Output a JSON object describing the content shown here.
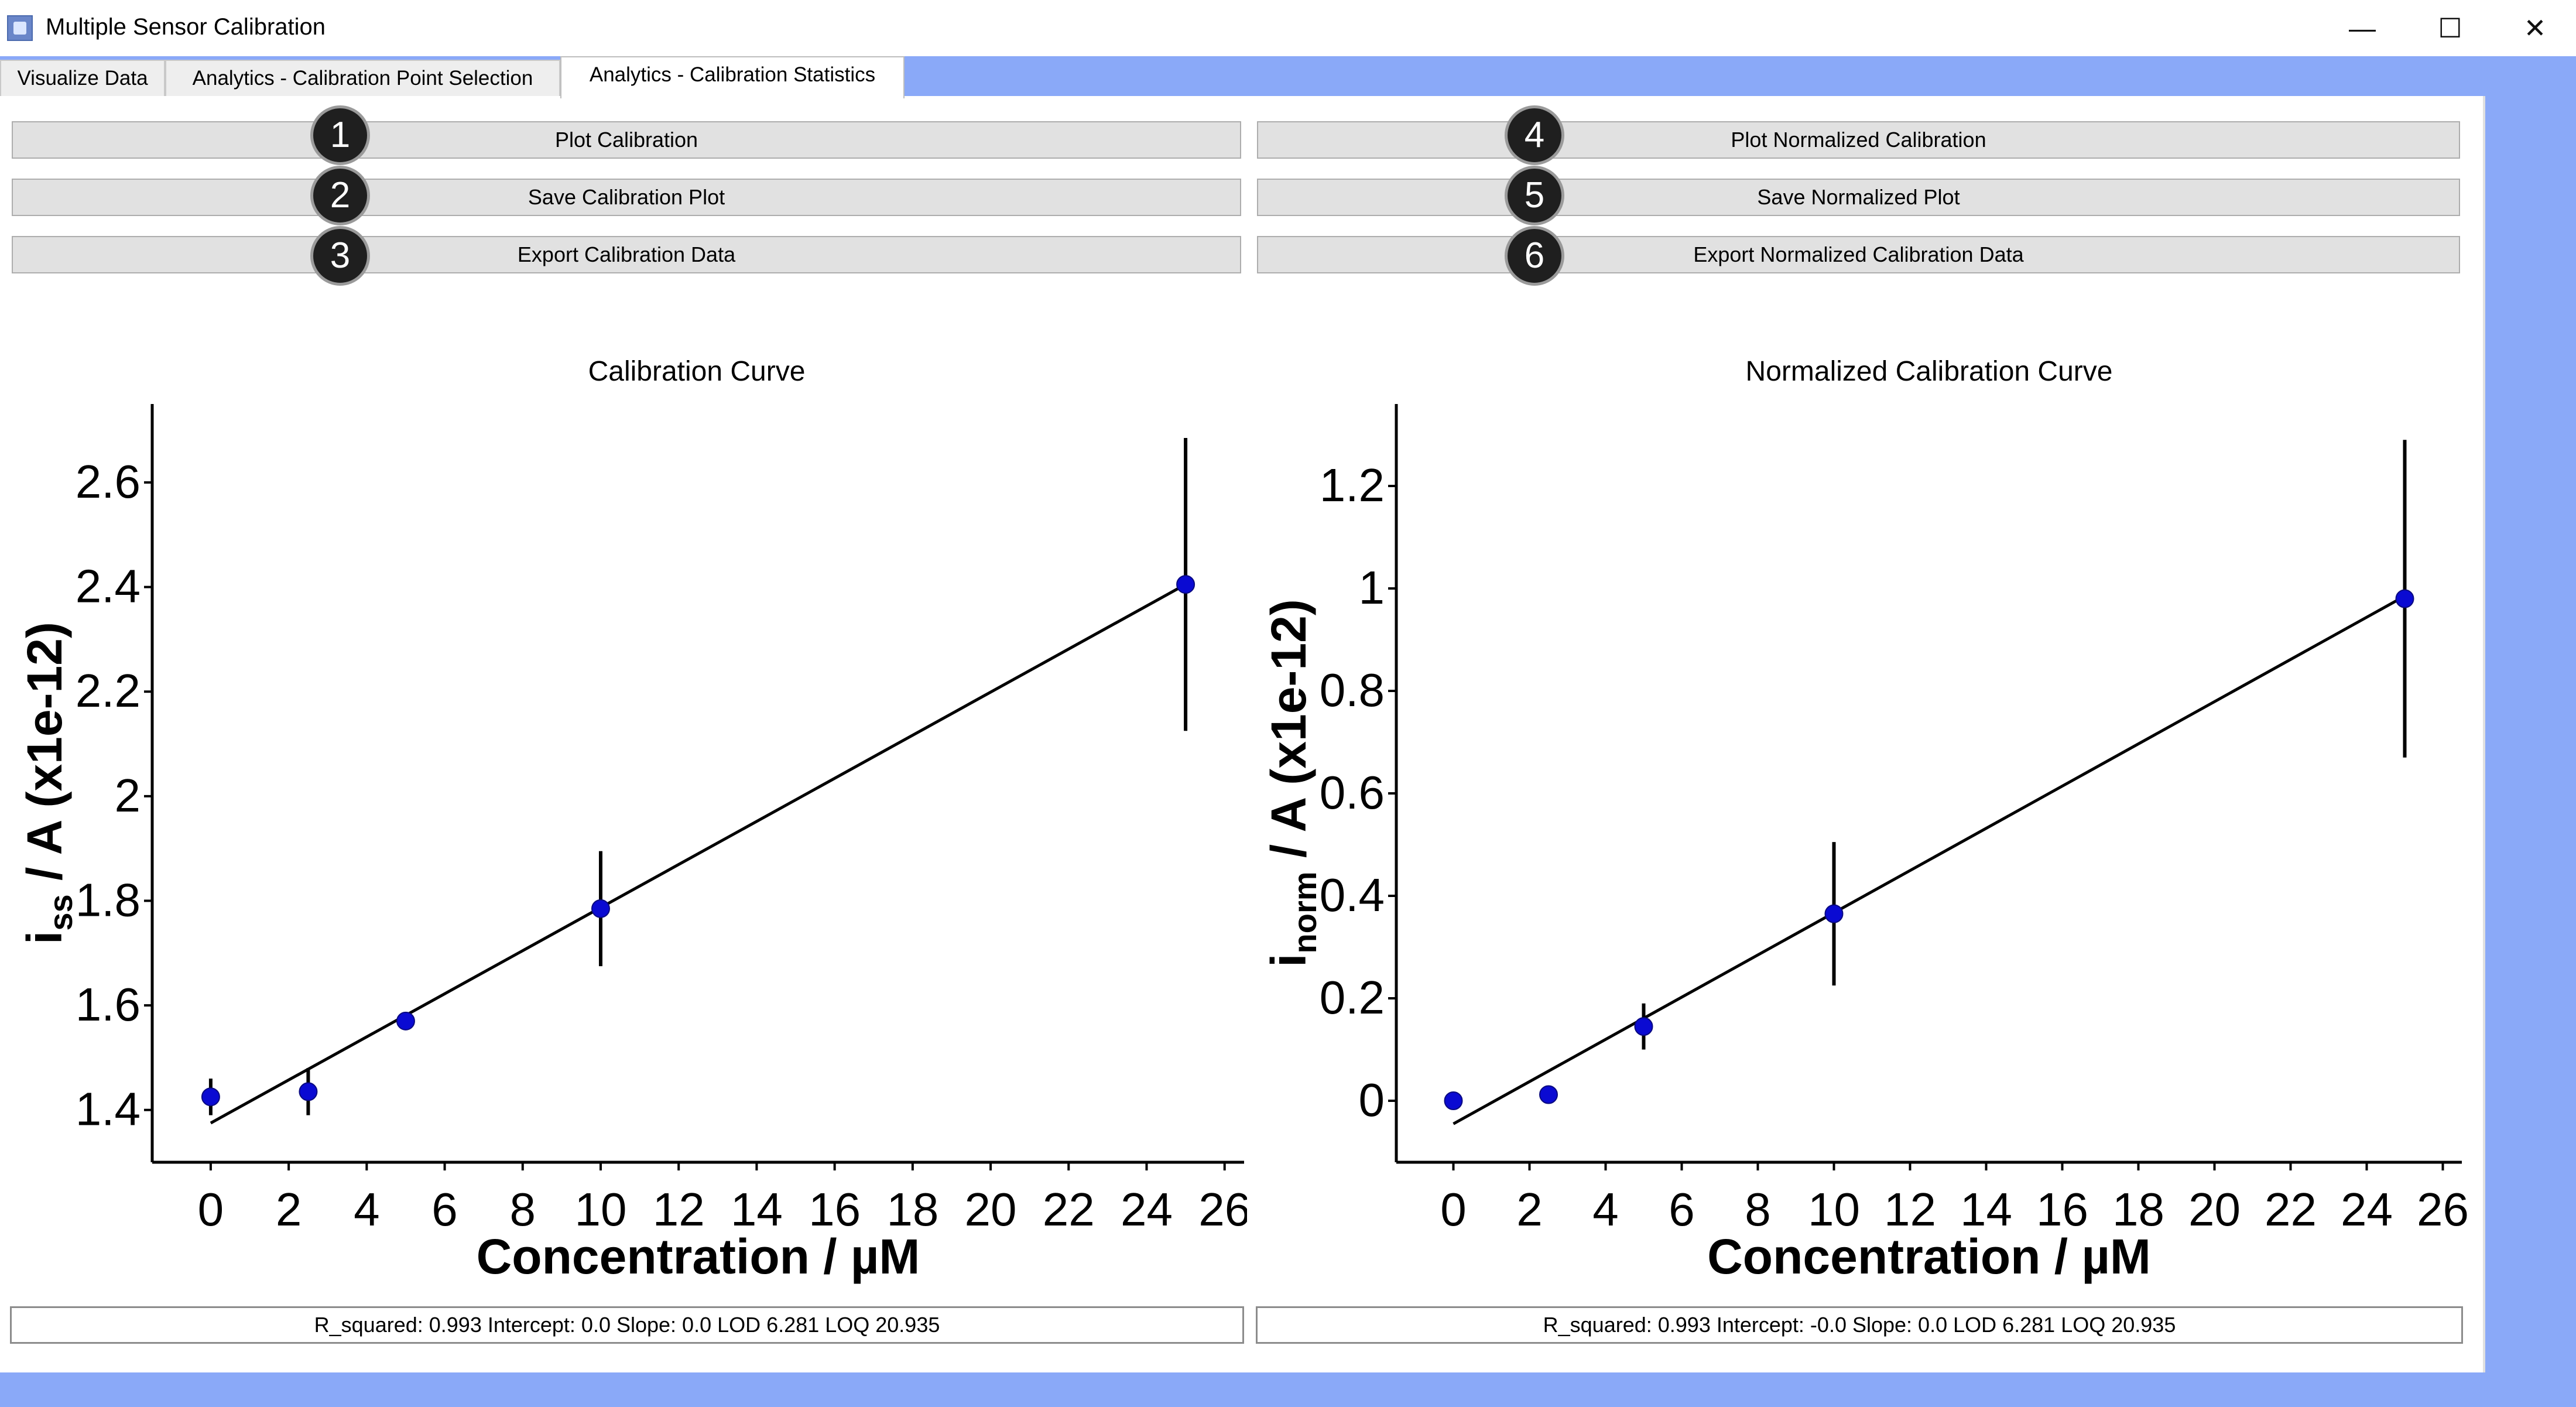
{
  "window": {
    "title": "Multiple Sensor Calibration",
    "controls": {
      "minimize": "—",
      "maximize": "☐",
      "close": "✕"
    }
  },
  "tabs": [
    {
      "label": "Visualize Data",
      "active": false
    },
    {
      "label": "Analytics - Calibration Point Selection",
      "active": false
    },
    {
      "label": "Analytics - Calibration Statistics",
      "active": true
    }
  ],
  "buttons": {
    "plot_calibration": "Plot Calibration",
    "save_calibration_plot": "Save Calibration Plot",
    "export_calibration_data": "Export Calibration Data",
    "plot_normalized_calibration": "Plot Normalized Calibration",
    "save_normalized_plot": "Save Normalized Plot",
    "export_normalized_calibration_data": "Export Normalized Calibration Data"
  },
  "badges": [
    "1",
    "2",
    "3",
    "4",
    "5",
    "6"
  ],
  "chart_data": [
    {
      "type": "scatter",
      "title": "Calibration Curve",
      "ylabel_main": "i",
      "ylabel_sub": "ss",
      "ylabel_rest": " / A (x1e-12)",
      "xlabel": "Concentration / µM",
      "xlim": [
        -1.5,
        26.5
      ],
      "ylim": [
        1.3,
        2.75
      ],
      "xticks": [
        0,
        2,
        4,
        6,
        8,
        10,
        12,
        14,
        16,
        18,
        20,
        22,
        24,
        26
      ],
      "yticks": [
        1.4,
        1.6,
        1.8,
        2.0,
        2.2,
        2.4,
        2.6
      ],
      "ytick_labels": [
        "1.4",
        "1.6",
        "1.8",
        "2",
        "2.2",
        "2.4",
        "2.6"
      ],
      "x": [
        0,
        2.5,
        5,
        10,
        25
      ],
      "y": [
        1.425,
        1.435,
        1.57,
        1.785,
        2.405
      ],
      "yerr": [
        0.035,
        0.045,
        0.015,
        0.11,
        0.28
      ],
      "fit": {
        "x": [
          0,
          25
        ],
        "y": [
          1.375,
          2.405
        ]
      },
      "marker_color": "#0a0ad2"
    },
    {
      "type": "scatter",
      "title": "Normalized Calibration Curve",
      "ylabel_main": "i",
      "ylabel_sub": "norm",
      "ylabel_rest": " / A (x1e-12)",
      "xlabel": "Concentration / µM",
      "xlim": [
        -1.5,
        26.5
      ],
      "ylim": [
        -0.12,
        1.36
      ],
      "xticks": [
        0,
        2,
        4,
        6,
        8,
        10,
        12,
        14,
        16,
        18,
        20,
        22,
        24,
        26
      ],
      "yticks": [
        0,
        0.2,
        0.4,
        0.6,
        0.8,
        1.0,
        1.2
      ],
      "ytick_labels": [
        "0",
        "0.2",
        "0.4",
        "0.6",
        "0.8",
        "1",
        "1.2"
      ],
      "x": [
        0,
        2.5,
        5,
        10,
        25
      ],
      "y": [
        0.0,
        0.012,
        0.145,
        0.365,
        0.98
      ],
      "yerr": [
        0.0,
        0.0,
        0.045,
        0.14,
        0.31
      ],
      "fit": {
        "x": [
          0,
          25
        ],
        "y": [
          -0.045,
          0.985
        ]
      },
      "marker_color": "#0a0ad2"
    }
  ],
  "status": {
    "left": "R_squared: 0.993 Intercept: 0.0 Slope: 0.0 LOD 6.281 LOQ 20.935",
    "right": "R_squared: 0.993 Intercept: -0.0 Slope: 0.0 LOD 6.281 LOQ 20.935"
  }
}
